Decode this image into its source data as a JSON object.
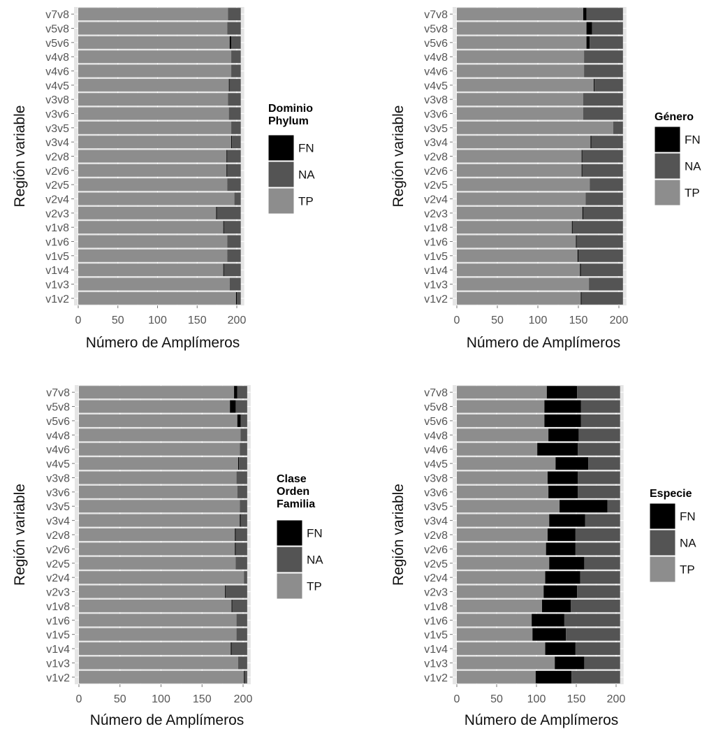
{
  "colors": {
    "FN": "#000000",
    "NA": "#545454",
    "TP": "#8d8d8d",
    "panel_bg": "#e5e5e5",
    "grid": "#ffffff"
  },
  "chart_data": [
    {
      "type": "bar",
      "orientation": "horizontal",
      "stacked": true,
      "xlabel": "Número de Amplímeros",
      "ylabel": "Región variable",
      "xlim": [
        0,
        205
      ],
      "xticks": [
        "0",
        "50",
        "100",
        "150",
        "200"
      ],
      "legend": {
        "title": [
          "Dominio",
          "Phylum"
        ],
        "entries": [
          "FN",
          "NA",
          "TP"
        ],
        "placement": "right"
      },
      "categories": [
        "v7v8",
        "v5v8",
        "v5v6",
        "v4v8",
        "v4v6",
        "v4v5",
        "v3v8",
        "v3v6",
        "v3v5",
        "v3v4",
        "v2v8",
        "v2v6",
        "v2v5",
        "v2v4",
        "v2v3",
        "v1v8",
        "v1v6",
        "v1v5",
        "v1v4",
        "v1v3",
        "v1v2"
      ],
      "series": [
        {
          "name": "TP",
          "values": [
            189,
            188,
            191,
            193,
            193,
            190,
            189,
            190,
            193,
            193,
            187,
            187,
            188,
            197,
            174,
            183,
            188,
            188,
            183,
            191,
            199
          ]
        },
        {
          "name": "FN",
          "values": [
            0,
            0,
            2,
            0,
            0,
            1,
            0,
            0,
            0,
            1,
            1,
            1,
            0,
            0,
            1,
            1,
            0,
            0,
            1,
            0,
            1
          ]
        },
        {
          "name": "NA",
          "values": [
            16,
            17,
            12,
            12,
            12,
            14,
            16,
            15,
            12,
            11,
            17,
            17,
            17,
            8,
            30,
            21,
            17,
            17,
            21,
            14,
            5
          ]
        }
      ]
    },
    {
      "type": "bar",
      "orientation": "horizontal",
      "stacked": true,
      "xlabel": "Número de Amplímeros",
      "ylabel": "Región variable",
      "xlim": [
        0,
        205
      ],
      "xticks": [
        "0",
        "50",
        "100",
        "150",
        "200"
      ],
      "legend": {
        "title": [
          "Género"
        ],
        "entries": [
          "FN",
          "NA",
          "TP"
        ],
        "placement": "right"
      },
      "categories": [
        "v7v8",
        "v5v8",
        "v5v6",
        "v4v8",
        "v4v6",
        "v4v5",
        "v3v8",
        "v3v6",
        "v3v5",
        "v3v4",
        "v2v8",
        "v2v6",
        "v2v5",
        "v2v4",
        "v2v3",
        "v1v8",
        "v1v6",
        "v1v5",
        "v1v4",
        "v1v3",
        "v1v2"
      ],
      "series": [
        {
          "name": "TP",
          "values": [
            156,
            160,
            160,
            157,
            157,
            169,
            156,
            156,
            193,
            165,
            154,
            154,
            164,
            159,
            155,
            142,
            147,
            149,
            152,
            163,
            153
          ]
        },
        {
          "name": "FN",
          "values": [
            4,
            7,
            4,
            0,
            0,
            1,
            0,
            0,
            0,
            1,
            1,
            1,
            0,
            0,
            1,
            1,
            1,
            1,
            1,
            0,
            1
          ]
        },
        {
          "name": "NA",
          "values": [
            45,
            38,
            41,
            48,
            48,
            35,
            49,
            49,
            12,
            39,
            50,
            50,
            41,
            46,
            49,
            62,
            57,
            55,
            52,
            42,
            51
          ]
        }
      ]
    },
    {
      "type": "bar",
      "orientation": "horizontal",
      "stacked": true,
      "xlabel": "Número de Amplímeros",
      "ylabel": "Región variable",
      "xlim": [
        0,
        205
      ],
      "xticks": [
        "0",
        "50",
        "100",
        "150",
        "200"
      ],
      "legend": {
        "title": [
          "Clase",
          "Orden",
          "Familia"
        ],
        "entries": [
          "FN",
          "NA",
          "TP"
        ],
        "placement": "right"
      },
      "categories": [
        "v7v8",
        "v5v8",
        "v5v6",
        "v4v8",
        "v4v6",
        "v4v5",
        "v3v8",
        "v3v6",
        "v3v5",
        "v3v4",
        "v2v8",
        "v2v6",
        "v2v5",
        "v2v4",
        "v2v3",
        "v1v8",
        "v1v6",
        "v1v5",
        "v1v4",
        "v1v3",
        "v1v2"
      ],
      "series": [
        {
          "name": "TP",
          "values": [
            189,
            184,
            193,
            197,
            196,
            194,
            192,
            193,
            196,
            196,
            190,
            190,
            191,
            201,
            178,
            186,
            192,
            192,
            185,
            194,
            201
          ]
        },
        {
          "name": "FN",
          "values": [
            4,
            7,
            4,
            0,
            0,
            1,
            0,
            0,
            0,
            1,
            1,
            1,
            0,
            0,
            1,
            1,
            0,
            0,
            1,
            0,
            1
          ]
        },
        {
          "name": "NA",
          "values": [
            12,
            14,
            8,
            8,
            9,
            10,
            13,
            12,
            9,
            8,
            14,
            14,
            14,
            4,
            26,
            18,
            13,
            13,
            19,
            11,
            3
          ]
        }
      ]
    },
    {
      "type": "bar",
      "orientation": "horizontal",
      "stacked": true,
      "xlabel": "Número de Amplímeros",
      "ylabel": "Región variable",
      "xlim": [
        0,
        205
      ],
      "xticks": [
        "0",
        "50",
        "100",
        "150",
        "200"
      ],
      "legend": {
        "title": [
          "Especie"
        ],
        "entries": [
          "FN",
          "NA",
          "TP"
        ],
        "placement": "right"
      },
      "categories": [
        "v7v8",
        "v5v8",
        "v5v6",
        "v4v8",
        "v4v6",
        "v4v5",
        "v3v8",
        "v3v6",
        "v3v5",
        "v3v4",
        "v2v8",
        "v2v6",
        "v2v5",
        "v2v4",
        "v2v3",
        "v1v8",
        "v1v6",
        "v1v5",
        "v1v4",
        "v1v3",
        "v1v2"
      ],
      "series": [
        {
          "name": "TP",
          "values": [
            113,
            110,
            110,
            115,
            101,
            124,
            114,
            115,
            129,
            116,
            114,
            112,
            116,
            111,
            109,
            107,
            94,
            95,
            111,
            123,
            99
          ]
        },
        {
          "name": "FN",
          "values": [
            38,
            46,
            46,
            38,
            51,
            41,
            38,
            37,
            60,
            45,
            35,
            37,
            44,
            44,
            42,
            36,
            41,
            42,
            38,
            37,
            45
          ]
        },
        {
          "name": "NA",
          "values": [
            54,
            49,
            49,
            52,
            53,
            40,
            53,
            53,
            16,
            44,
            56,
            56,
            45,
            50,
            54,
            62,
            70,
            68,
            56,
            45,
            61
          ]
        }
      ]
    }
  ]
}
